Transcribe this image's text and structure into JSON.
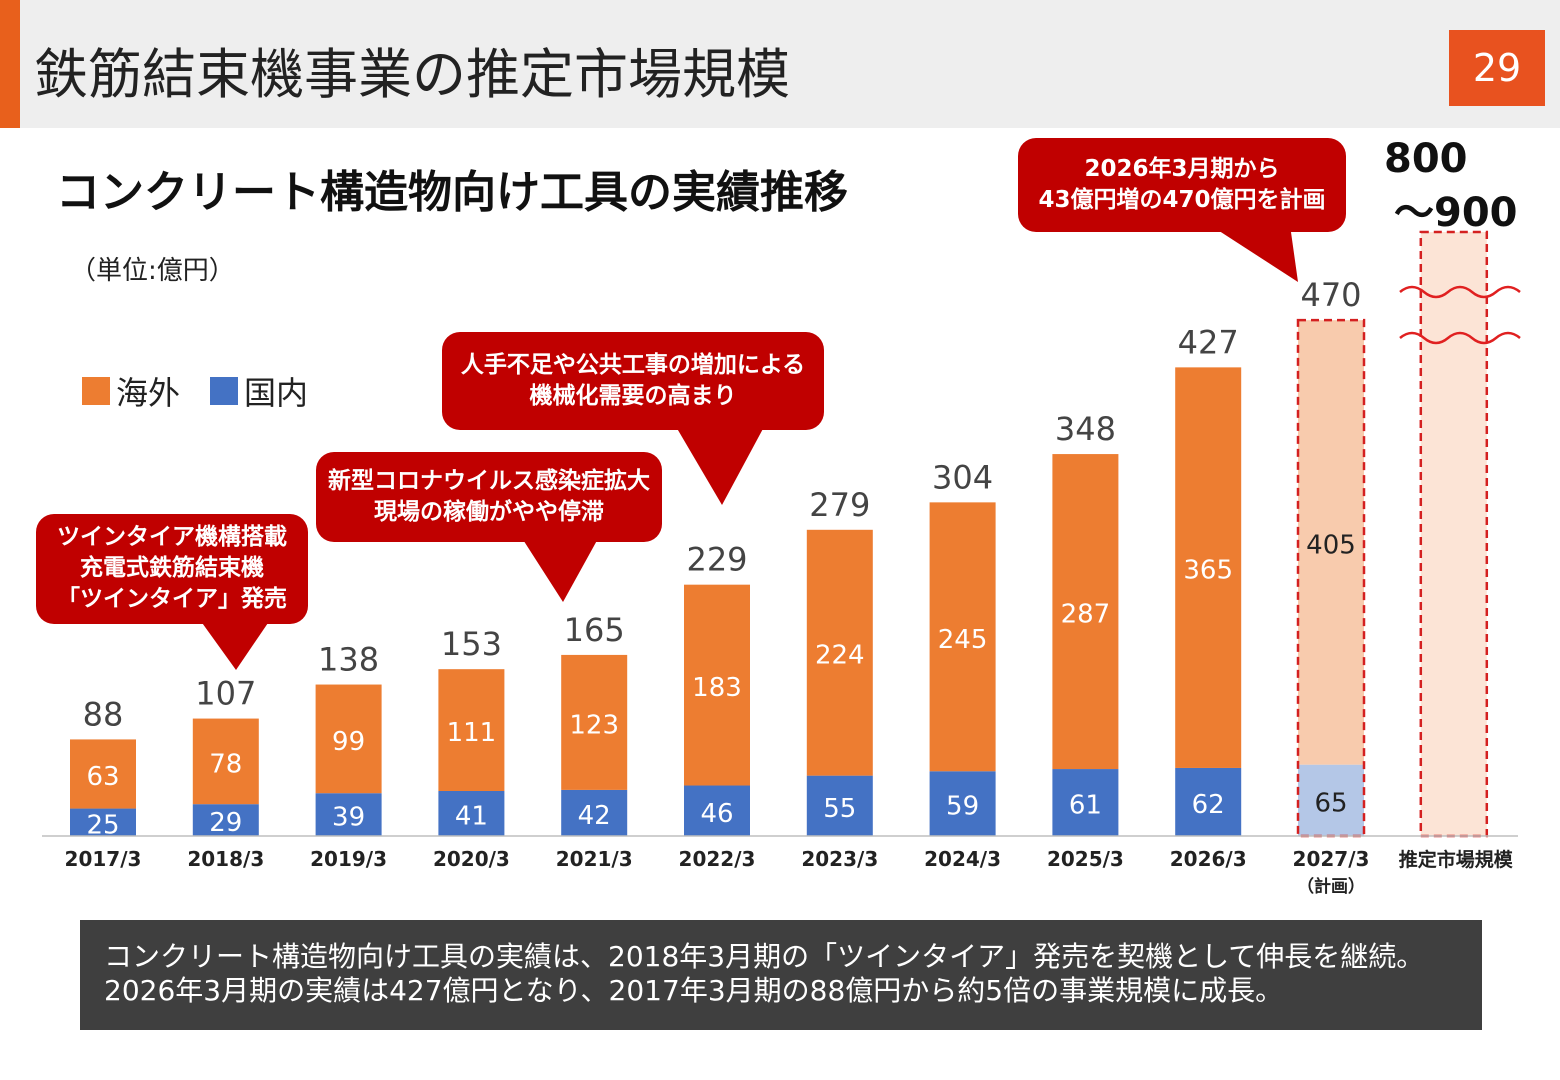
{
  "header": {
    "title": "鉄筋結束機事業の推定市場規模",
    "page_number": "29"
  },
  "chart_title": "コンクリート構造物向け工具の実績推移",
  "unit_label": "（単位:億円）",
  "legend": [
    {
      "label": "海外",
      "color": "#ed7d31"
    },
    {
      "label": "国内",
      "color": "#4472c4"
    }
  ],
  "callouts": [
    {
      "lines": [
        "ツインタイア機構搭載",
        "充電式鉄筋結束機",
        "「ツインタイア」発売"
      ]
    },
    {
      "lines": [
        "新型コロナウイルス感染症拡大",
        "現場の稼働がやや停滞"
      ]
    },
    {
      "lines": [
        "人手不足や公共工事の増加による",
        "機械化需要の高まり"
      ]
    },
    {
      "lines": [
        "2026年3月期から",
        "43億円増の470億円を計画"
      ]
    }
  ],
  "market_estimate": {
    "value_lines": [
      "800",
      "～900"
    ],
    "label": "推定市場規模"
  },
  "chart_data": {
    "type": "bar",
    "stacked": true,
    "categories": [
      "2017/3",
      "2018/3",
      "2019/3",
      "2020/3",
      "2021/3",
      "2022/3",
      "2023/3",
      "2024/3",
      "2025/3",
      "2026/3",
      "2027/3"
    ],
    "category_sublabels": [
      "",
      "",
      "",
      "",
      "",
      "",
      "",
      "",
      "",
      "",
      "（計画）"
    ],
    "series": [
      {
        "name": "国内",
        "values": [
          25,
          29,
          39,
          41,
          42,
          46,
          55,
          59,
          61,
          62,
          65
        ],
        "color": "#4472c4"
      },
      {
        "name": "海外",
        "values": [
          63,
          78,
          99,
          111,
          123,
          183,
          224,
          245,
          287,
          365,
          405
        ],
        "color": "#ed7d31"
      }
    ],
    "totals": [
      88,
      107,
      138,
      153,
      165,
      229,
      279,
      304,
      348,
      427,
      470
    ],
    "plan_index": 10,
    "plan_colors": {
      "domestic": "#b4c7e7",
      "overseas": "#f8cbad",
      "border": "#d42020"
    }
  },
  "note": {
    "lines": [
      "コンクリート構造物向け工具の実績は、2018年3月期の「ツインタイア」発売を契機として伸長を継続。",
      "2026年3月期の実績は427億円となり、2017年3月期の88億円から約5倍の事業規模に成長。"
    ]
  }
}
